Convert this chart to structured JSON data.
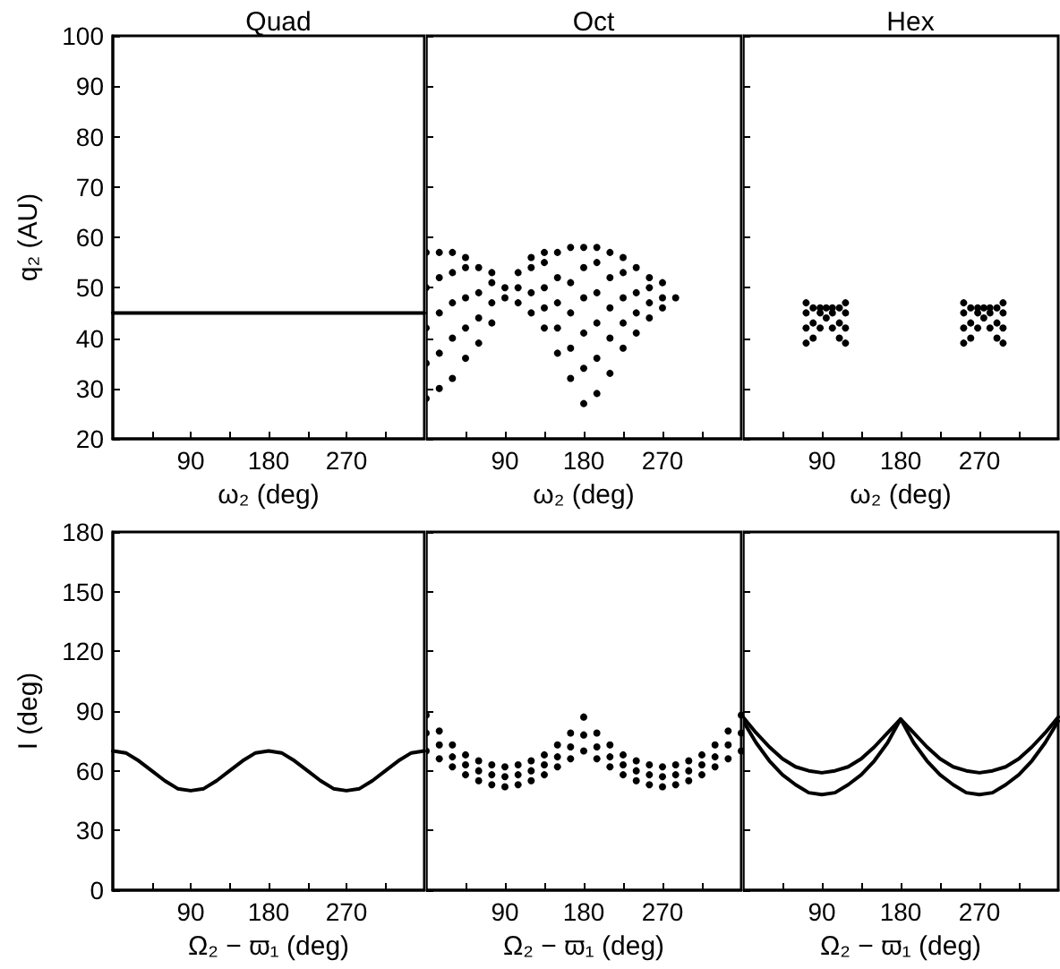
{
  "chart_data": [
    {
      "type": "line",
      "title": "Quad",
      "xlabel": "ω₂ (deg)",
      "ylabel": "q₂ (AU)",
      "xlim": [
        0,
        360
      ],
      "ylim": [
        20,
        100
      ],
      "xticks": [
        {
          "value": 45,
          "label": null
        },
        90,
        {
          "value": 135,
          "label": null
        },
        180,
        {
          "value": 225,
          "label": null
        },
        270,
        {
          "value": 315,
          "label": null
        }
      ],
      "yticks": [
        20,
        30,
        40,
        50,
        60,
        70,
        80,
        90,
        100
      ],
      "grid": false,
      "marker": "none",
      "line_style": "solid",
      "series": [
        {
          "color": "#000000",
          "x": [
            0,
            360
          ],
          "values": [
            45,
            45
          ]
        }
      ]
    },
    {
      "type": "scatter",
      "title": "Oct",
      "xlabel": "ω₂ (deg)",
      "xlim": [
        0,
        360
      ],
      "ylim": [
        20,
        100
      ],
      "xticks": [
        {
          "value": 45,
          "label": null
        },
        90,
        {
          "value": 135,
          "label": null
        },
        180,
        {
          "value": 225,
          "label": null
        },
        270,
        {
          "value": 315,
          "label": null
        }
      ],
      "yticks": [
        20,
        30,
        40,
        50,
        60,
        70,
        80,
        90,
        100
      ],
      "tick_labels": "x",
      "grid": false,
      "marker": "circle",
      "series": [
        {
          "color": "#000000",
          "x": [
            0,
            0,
            0,
            0,
            0,
            15,
            15,
            15,
            15,
            15,
            30,
            30,
            30,
            30,
            30,
            45,
            45,
            45,
            45,
            45,
            60,
            60,
            60,
            60,
            75,
            75,
            75,
            75,
            90,
            90,
            105,
            105,
            105,
            120,
            120,
            120,
            120,
            135,
            135,
            135,
            135,
            135,
            150,
            150,
            150,
            150,
            150,
            165,
            165,
            165,
            165,
            165,
            180,
            180,
            180,
            180,
            180,
            180,
            195,
            195,
            195,
            195,
            195,
            195,
            210,
            210,
            210,
            210,
            210,
            225,
            225,
            225,
            225,
            225,
            240,
            240,
            240,
            240,
            255,
            255,
            255,
            255,
            270,
            270,
            270,
            285
          ],
          "values": [
            28,
            35,
            42,
            50,
            57,
            30,
            37,
            45,
            52,
            57,
            32,
            40,
            47,
            53,
            57,
            36,
            42,
            48,
            54,
            56,
            39,
            44,
            49,
            54,
            43,
            47,
            51,
            53,
            48,
            50,
            47,
            50,
            53,
            45,
            49,
            54,
            56,
            42,
            46,
            50,
            55,
            57,
            37,
            42,
            47,
            52,
            57,
            32,
            38,
            45,
            51,
            58,
            27,
            34,
            41,
            48,
            54,
            58,
            29,
            36,
            43,
            49,
            55,
            58,
            33,
            40,
            46,
            52,
            57,
            38,
            43,
            48,
            53,
            56,
            41,
            45,
            49,
            54,
            44,
            47,
            50,
            52,
            46,
            48,
            51,
            48
          ]
        }
      ]
    },
    {
      "type": "scatter",
      "title": "Hex",
      "xlabel": "ω₂ (deg)",
      "xlim": [
        0,
        360
      ],
      "ylim": [
        20,
        100
      ],
      "xticks": [
        {
          "value": 45,
          "label": null
        },
        90,
        {
          "value": 135,
          "label": null
        },
        180,
        {
          "value": 225,
          "label": null
        },
        270,
        {
          "value": 315,
          "label": null
        }
      ],
      "yticks": [
        20,
        30,
        40,
        50,
        60,
        70,
        80,
        90,
        100
      ],
      "tick_labels": "x",
      "grid": false,
      "marker": "circle",
      "series": [
        {
          "color": "#000000",
          "x": [
            72,
            72,
            72,
            72,
            80,
            80,
            80,
            88,
            88,
            88,
            95,
            95,
            102,
            102,
            102,
            110,
            110,
            110,
            117,
            117,
            117,
            117,
            252,
            252,
            252,
            252,
            260,
            260,
            260,
            268,
            268,
            268,
            275,
            275,
            282,
            282,
            282,
            290,
            290,
            290,
            297,
            297,
            297,
            297
          ],
          "values": [
            39,
            42,
            45,
            47,
            40,
            43,
            46,
            42,
            45,
            46,
            44,
            46,
            42,
            45,
            46,
            40,
            43,
            46,
            39,
            42,
            45,
            47,
            39,
            42,
            45,
            47,
            40,
            43,
            46,
            42,
            45,
            46,
            44,
            46,
            42,
            45,
            46,
            40,
            43,
            46,
            39,
            42,
            45,
            47
          ]
        }
      ]
    },
    {
      "type": "line",
      "xlabel": "Ω₂ − ϖ₁ (deg)",
      "ylabel": "I (deg)",
      "xlim": [
        0,
        360
      ],
      "ylim": [
        0,
        180
      ],
      "xticks": [
        {
          "value": 45,
          "label": null
        },
        90,
        {
          "value": 135,
          "label": null
        },
        180,
        {
          "value": 225,
          "label": null
        },
        270,
        {
          "value": 315,
          "label": null
        }
      ],
      "yticks": [
        0,
        30,
        60,
        90,
        120,
        150,
        180
      ],
      "grid": false,
      "marker": "none",
      "line_style": "solid",
      "series": [
        {
          "color": "#000000",
          "x": [
            0,
            15,
            30,
            45,
            60,
            75,
            90,
            105,
            120,
            135,
            150,
            165,
            180,
            195,
            210,
            225,
            240,
            255,
            270,
            285,
            300,
            315,
            330,
            345,
            360
          ],
          "values": [
            70,
            69,
            65,
            60,
            55,
            51,
            50,
            51,
            55,
            60,
            65,
            69,
            70,
            69,
            65,
            60,
            55,
            51,
            50,
            51,
            55,
            60,
            65,
            69,
            70
          ]
        }
      ]
    },
    {
      "type": "scatter",
      "xlabel": "Ω₂ − ϖ₁ (deg)",
      "xlim": [
        0,
        360
      ],
      "ylim": [
        0,
        180
      ],
      "xticks": [
        {
          "value": 45,
          "label": null
        },
        90,
        {
          "value": 135,
          "label": null
        },
        180,
        {
          "value": 225,
          "label": null
        },
        270,
        {
          "value": 315,
          "label": null
        }
      ],
      "yticks": [
        0,
        30,
        60,
        90,
        120,
        150,
        180
      ],
      "tick_labels": "x",
      "grid": false,
      "marker": "circle",
      "series": [
        {
          "color": "#000000",
          "x": [
            0,
            15,
            30,
            45,
            60,
            75,
            90,
            105,
            120,
            135,
            150,
            165,
            180,
            195,
            210,
            225,
            240,
            255,
            270,
            285,
            300,
            315,
            330,
            345,
            360,
            0,
            15,
            30,
            45,
            60,
            75,
            90,
            105,
            120,
            135,
            150,
            165,
            180,
            195,
            210,
            225,
            240,
            255,
            270,
            285,
            300,
            315,
            330,
            345,
            360,
            0,
            15,
            30,
            45,
            60,
            75,
            90,
            105,
            120,
            135,
            150,
            165,
            180,
            195,
            210,
            225,
            240,
            255,
            270,
            285,
            300,
            315,
            330,
            345,
            360
          ],
          "values": [
            88,
            80,
            73,
            68,
            65,
            63,
            62,
            63,
            65,
            68,
            73,
            79,
            87,
            79,
            73,
            68,
            65,
            63,
            62,
            63,
            65,
            68,
            73,
            80,
            88,
            70,
            66,
            62,
            58,
            55,
            53,
            52,
            53,
            55,
            58,
            62,
            66,
            70,
            66,
            62,
            58,
            55,
            53,
            52,
            53,
            55,
            58,
            62,
            66,
            70,
            79,
            73,
            67,
            63,
            60,
            58,
            57,
            58,
            60,
            63,
            67,
            72,
            78,
            72,
            67,
            63,
            60,
            58,
            57,
            58,
            60,
            63,
            67,
            73,
            79
          ]
        }
      ]
    },
    {
      "type": "line",
      "xlabel": "Ω₂ − ϖ₁ (deg)",
      "xlim": [
        0,
        360
      ],
      "ylim": [
        0,
        180
      ],
      "xticks": [
        {
          "value": 45,
          "label": null
        },
        90,
        {
          "value": 135,
          "label": null
        },
        180,
        {
          "value": 225,
          "label": null
        },
        270,
        {
          "value": 315,
          "label": null
        }
      ],
      "yticks": [
        0,
        30,
        60,
        90,
        120,
        150,
        180
      ],
      "tick_labels": "x",
      "grid": false,
      "marker": "none",
      "line_style": "solid",
      "series": [
        {
          "color": "#000000",
          "x": [
            0,
            15,
            30,
            45,
            60,
            75,
            90,
            105,
            120,
            135,
            150,
            165,
            180,
            195,
            210,
            225,
            240,
            255,
            270,
            285,
            300,
            315,
            330,
            345,
            360
          ],
          "values": [
            87,
            79,
            72,
            66,
            62,
            60,
            59,
            60,
            62,
            66,
            72,
            79,
            86,
            79,
            72,
            66,
            62,
            60,
            59,
            60,
            62,
            66,
            72,
            79,
            87
          ]
        },
        {
          "color": "#000000",
          "x": [
            0,
            15,
            30,
            45,
            60,
            75,
            90,
            105,
            120,
            135,
            150,
            165,
            180,
            195,
            210,
            225,
            240,
            255,
            270,
            285,
            300,
            315,
            330,
            345,
            360
          ],
          "values": [
            85,
            74,
            65,
            58,
            53,
            49,
            48,
            49,
            53,
            58,
            65,
            74,
            86,
            74,
            65,
            58,
            53,
            49,
            48,
            49,
            53,
            58,
            65,
            74,
            85
          ]
        }
      ]
    }
  ]
}
